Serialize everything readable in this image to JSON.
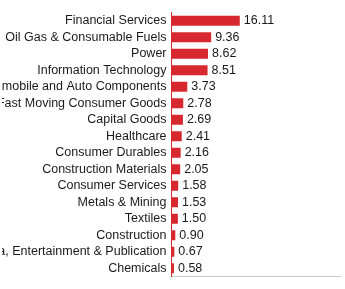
{
  "chart_data": {
    "type": "bar",
    "orientation": "horizontal",
    "categories": [
      "Financial Services",
      "Oil Gas & Consumable Fuels",
      "Power",
      "Information Technology",
      "Automobile and Auto Components",
      "Fast Moving Consumer Goods",
      "Capital Goods",
      "Healthcare",
      "Consumer Durables",
      "Construction Materials",
      "Consumer Services",
      "Metals & Mining",
      "Textiles",
      "Construction",
      "Media, Entertainment & Publication",
      "Chemicals"
    ],
    "values": [
      16.11,
      9.36,
      8.62,
      8.51,
      3.73,
      2.78,
      2.69,
      2.41,
      2.16,
      2.05,
      1.58,
      1.53,
      1.5,
      0.9,
      0.67,
      0.58
    ],
    "value_labels": [
      "16.11",
      "9.36",
      "8.62",
      "8.51",
      "3.73",
      "2.78",
      "2.69",
      "2.41",
      "2.16",
      "2.05",
      "1.58",
      "1.53",
      "1.50",
      "0.90",
      "0.67",
      "0.58"
    ],
    "color": "#d7282f",
    "xlim": [
      0,
      40
    ],
    "grid": false,
    "data_labels": true,
    "tick_labels": "y"
  }
}
